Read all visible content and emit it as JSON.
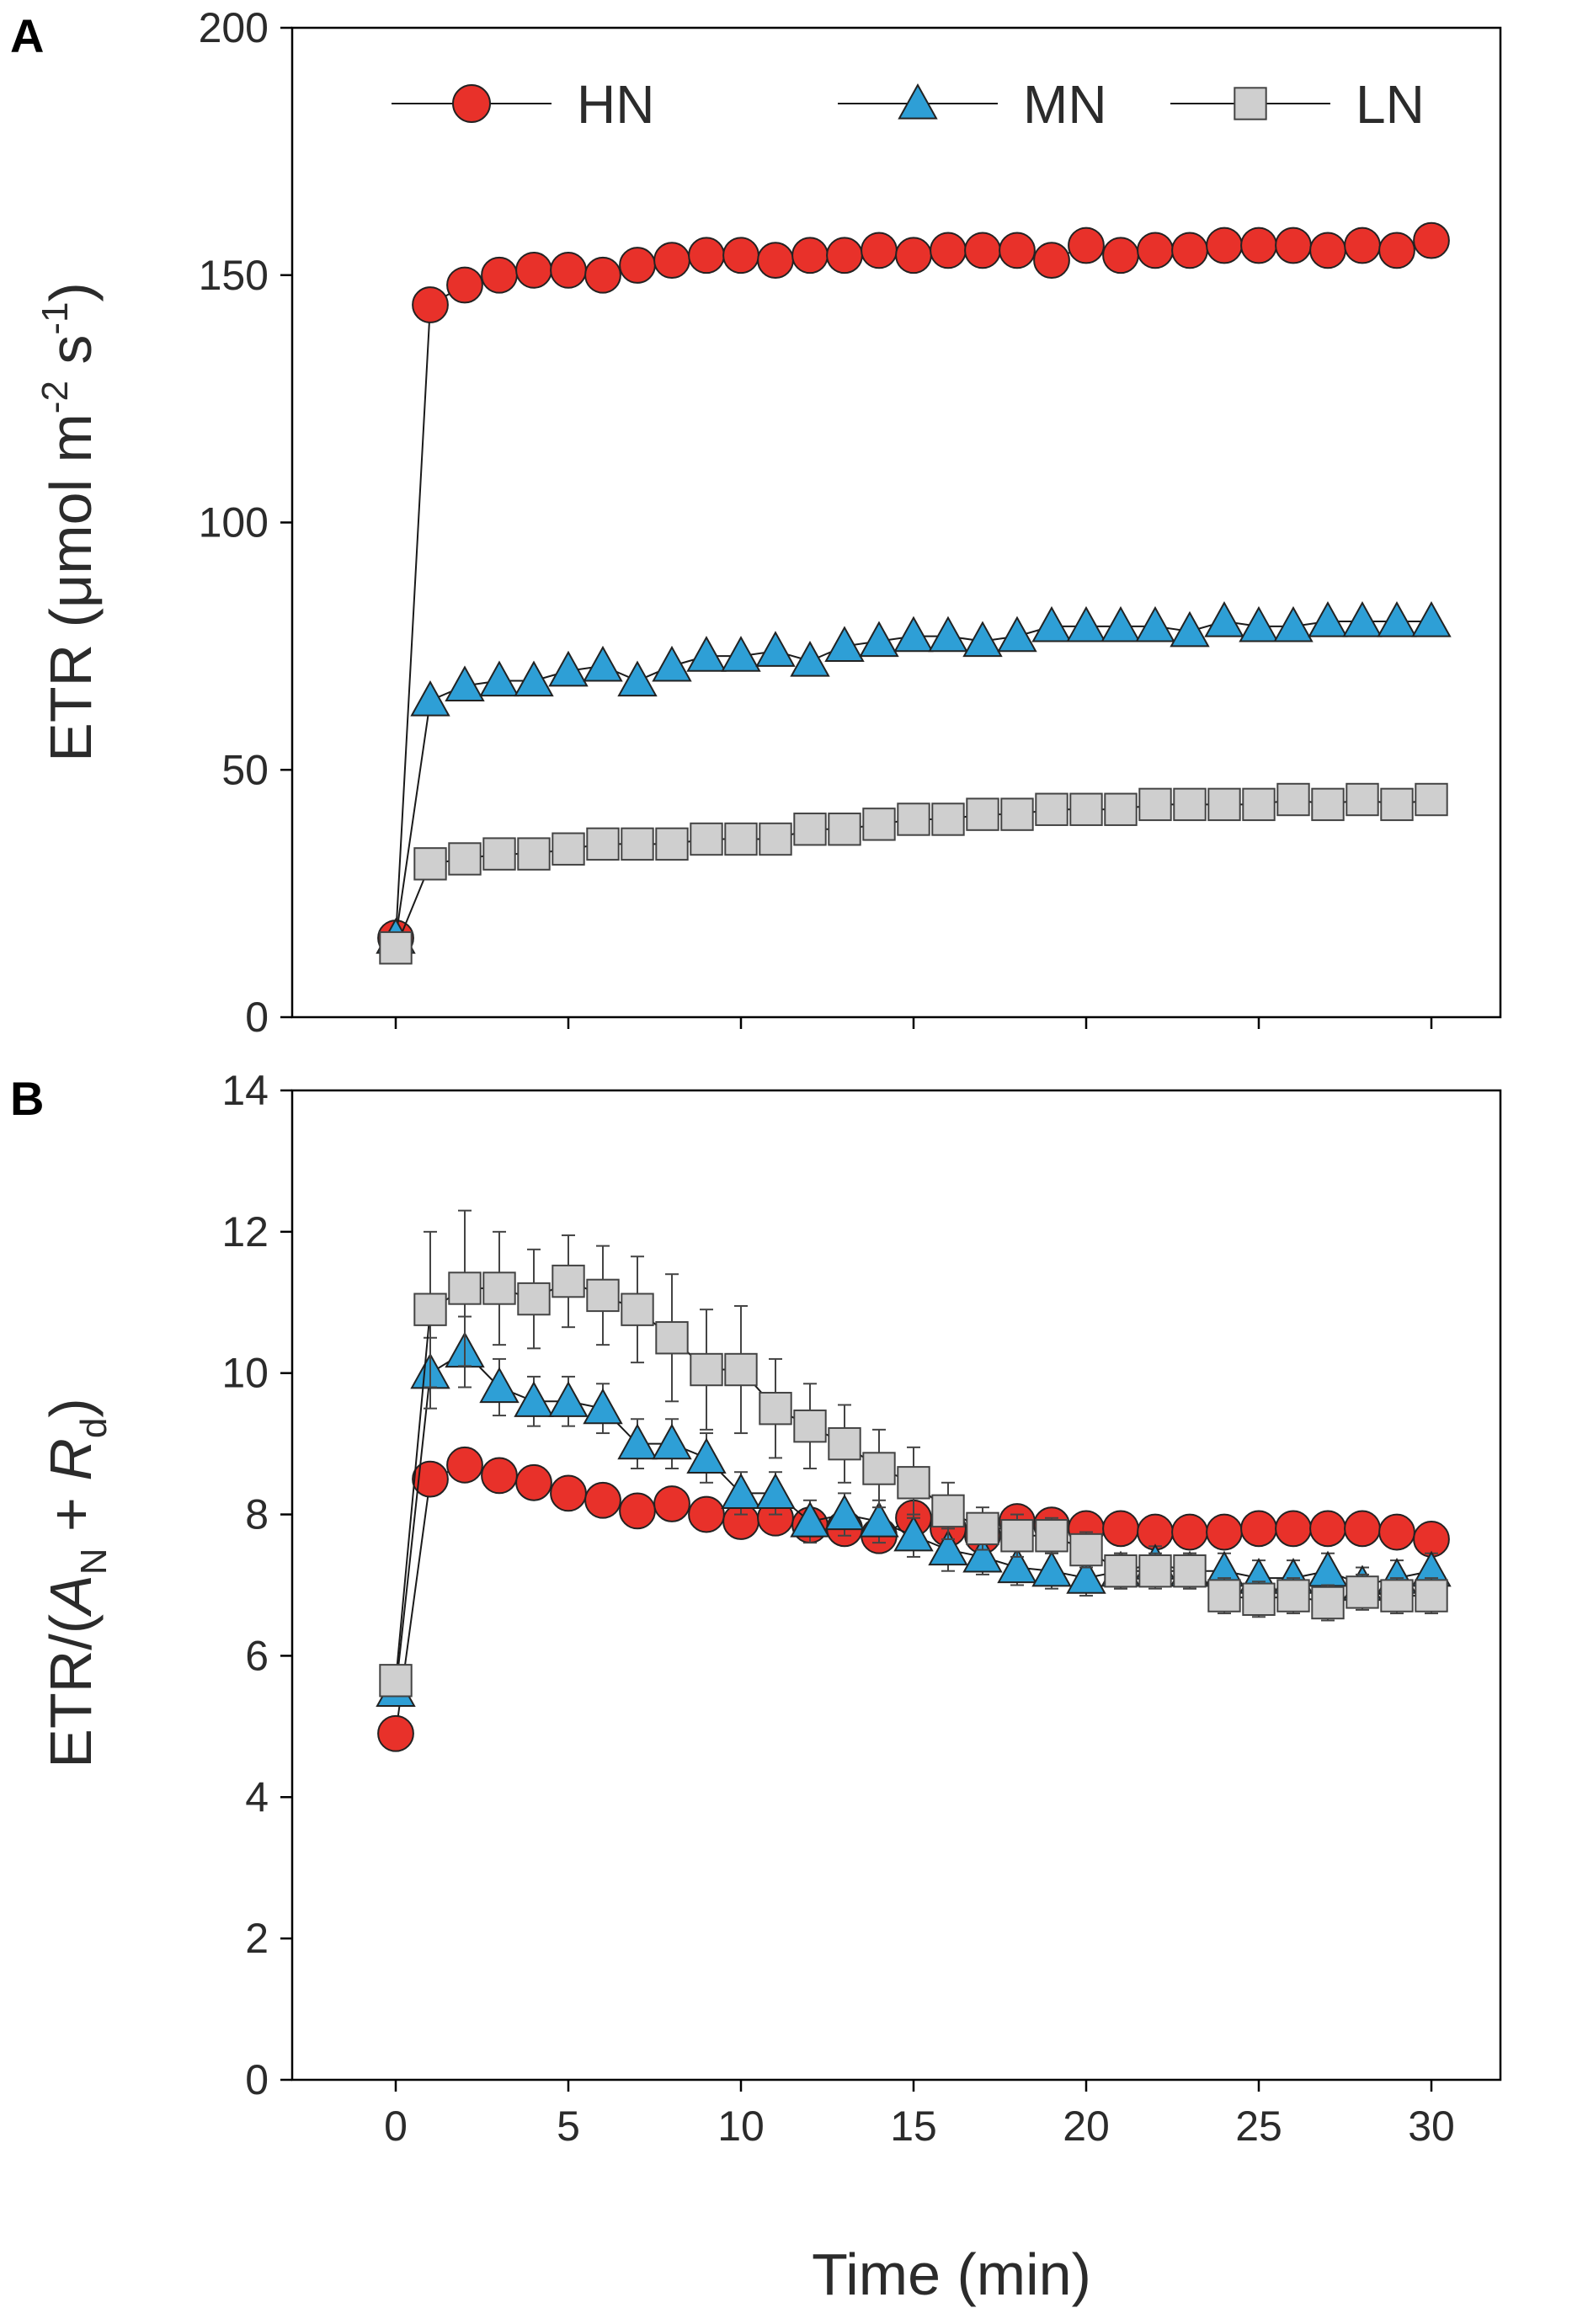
{
  "chart_data": [
    {
      "panel_label": "A",
      "type": "line",
      "ylabel_parts": [
        "ETR (μmol m",
        "-2",
        " s",
        "-1",
        ")"
      ],
      "xlabel": "Time (min)",
      "ylim": [
        0,
        200
      ],
      "xlim": [
        -3,
        32
      ],
      "yticks": [
        "0",
        "50",
        "100",
        "150",
        "200"
      ],
      "xticks": [
        "0",
        "5",
        "10",
        "15",
        "20",
        "25",
        "30"
      ],
      "legend": [
        "HN",
        "MN",
        "LN"
      ],
      "x": [
        0,
        1,
        2,
        3,
        4,
        5,
        6,
        7,
        8,
        9,
        10,
        11,
        12,
        13,
        14,
        15,
        16,
        17,
        18,
        19,
        20,
        21,
        22,
        23,
        24,
        25,
        26,
        27,
        28,
        29,
        30
      ],
      "series": [
        {
          "name": "HN",
          "color": "#e8312a",
          "marker": "circle",
          "values": [
            16,
            144,
            148,
            150,
            151,
            151,
            150,
            152,
            153,
            154,
            154,
            153,
            154,
            154,
            155,
            154,
            155,
            155,
            155,
            153,
            156,
            154,
            155,
            155,
            156,
            156,
            156,
            155,
            156,
            155,
            157
          ],
          "errors": [
            1,
            1,
            1,
            1,
            1,
            1,
            1,
            1,
            1,
            1,
            1,
            1,
            1,
            1,
            1,
            1,
            1,
            1,
            1,
            1,
            1,
            1,
            1,
            1,
            1,
            1,
            1,
            1,
            1,
            1,
            1
          ]
        },
        {
          "name": "MN",
          "color": "#2e9fd6",
          "marker": "triangle",
          "values": [
            16,
            64,
            67,
            68,
            68,
            70,
            71,
            68,
            71,
            73,
            73,
            74,
            72,
            75,
            76,
            77,
            77,
            76,
            77,
            79,
            79,
            79,
            79,
            78,
            80,
            79,
            79,
            80,
            80,
            80,
            80
          ],
          "errors": [
            1,
            1,
            1,
            1,
            1,
            1,
            1,
            1,
            1,
            1,
            1,
            1,
            1,
            1,
            1,
            1,
            1,
            1,
            1,
            1,
            1,
            1,
            1,
            1,
            1,
            1,
            1,
            1,
            1,
            1,
            1
          ]
        },
        {
          "name": "LN",
          "color": "#cfcfcf",
          "marker": "square",
          "values": [
            14,
            31,
            32,
            33,
            33,
            34,
            35,
            35,
            35,
            36,
            36,
            36,
            38,
            38,
            39,
            40,
            40,
            41,
            41,
            42,
            42,
            42,
            43,
            43,
            43,
            43,
            44,
            43,
            44,
            43,
            44
          ],
          "errors": [
            1,
            1,
            1,
            1,
            1,
            1,
            1,
            1,
            1,
            1,
            1,
            1,
            1,
            1,
            1,
            1,
            1,
            1,
            1,
            1,
            1,
            1,
            1,
            1,
            1,
            1,
            1,
            1,
            1,
            1,
            1
          ]
        }
      ]
    },
    {
      "panel_label": "B",
      "type": "line",
      "ylabel_parts": [
        "ETR/(",
        "A",
        "N",
        " + ",
        "R",
        "d",
        ")"
      ],
      "xlabel": "Time (min)",
      "ylim": [
        0,
        14
      ],
      "xlim": [
        -3,
        32
      ],
      "yticks": [
        "0",
        "2",
        "4",
        "6",
        "8",
        "10",
        "12",
        "14"
      ],
      "xticks": [
        "0",
        "5",
        "10",
        "15",
        "20",
        "25",
        "30"
      ],
      "x": [
        0,
        1,
        2,
        3,
        4,
        5,
        6,
        7,
        8,
        9,
        10,
        11,
        12,
        13,
        14,
        15,
        16,
        17,
        18,
        19,
        20,
        21,
        22,
        23,
        24,
        25,
        26,
        27,
        28,
        29,
        30
      ],
      "series": [
        {
          "name": "HN",
          "color": "#e8312a",
          "marker": "circle",
          "values": [
            4.9,
            8.5,
            8.7,
            8.55,
            8.45,
            8.3,
            8.2,
            8.05,
            8.15,
            8.0,
            7.9,
            7.95,
            7.85,
            7.8,
            7.7,
            7.95,
            7.8,
            7.7,
            7.9,
            7.85,
            7.8,
            7.8,
            7.75,
            7.75,
            7.75,
            7.8,
            7.8,
            7.8,
            7.8,
            7.75,
            7.65
          ],
          "errors": [
            0.1,
            0.15,
            0.2,
            0.15,
            0.15,
            0.15,
            0.15,
            0.15,
            0.15,
            0.15,
            0.15,
            0.15,
            0.15,
            0.15,
            0.15,
            0.15,
            0.15,
            0.15,
            0.15,
            0.15,
            0.15,
            0.15,
            0.15,
            0.15,
            0.15,
            0.15,
            0.15,
            0.15,
            0.15,
            0.15,
            0.15
          ]
        },
        {
          "name": "MN",
          "color": "#2e9fd6",
          "marker": "triangle",
          "values": [
            5.5,
            10.0,
            10.3,
            9.8,
            9.6,
            9.6,
            9.5,
            9.0,
            9.0,
            8.8,
            8.3,
            8.3,
            7.9,
            8.0,
            7.9,
            7.7,
            7.5,
            7.4,
            7.25,
            7.2,
            7.1,
            7.2,
            7.3,
            7.2,
            7.2,
            7.1,
            7.1,
            7.2,
            7.0,
            7.1,
            7.2
          ],
          "errors": [
            0.2,
            0.5,
            0.5,
            0.4,
            0.35,
            0.35,
            0.35,
            0.35,
            0.35,
            0.35,
            0.3,
            0.3,
            0.3,
            0.3,
            0.3,
            0.3,
            0.3,
            0.25,
            0.25,
            0.25,
            0.25,
            0.25,
            0.25,
            0.25,
            0.25,
            0.25,
            0.25,
            0.25,
            0.25,
            0.25,
            0.25
          ]
        },
        {
          "name": "LN",
          "color": "#cfcfcf",
          "marker": "square",
          "values": [
            5.65,
            10.9,
            11.2,
            11.2,
            11.05,
            11.3,
            11.1,
            10.9,
            10.5,
            10.05,
            10.05,
            9.5,
            9.25,
            9.0,
            8.65,
            8.45,
            8.05,
            7.8,
            7.7,
            7.7,
            7.5,
            7.2,
            7.2,
            7.2,
            6.85,
            6.8,
            6.85,
            6.75,
            6.9,
            6.85,
            6.85
          ],
          "errors": [
            0.2,
            1.1,
            1.1,
            0.8,
            0.7,
            0.65,
            0.7,
            0.75,
            0.9,
            0.85,
            0.9,
            0.7,
            0.6,
            0.55,
            0.55,
            0.5,
            0.4,
            0.3,
            0.3,
            0.25,
            0.25,
            0.25,
            0.25,
            0.25,
            0.25,
            0.25,
            0.25,
            0.25,
            0.25,
            0.25,
            0.25
          ]
        }
      ]
    }
  ]
}
